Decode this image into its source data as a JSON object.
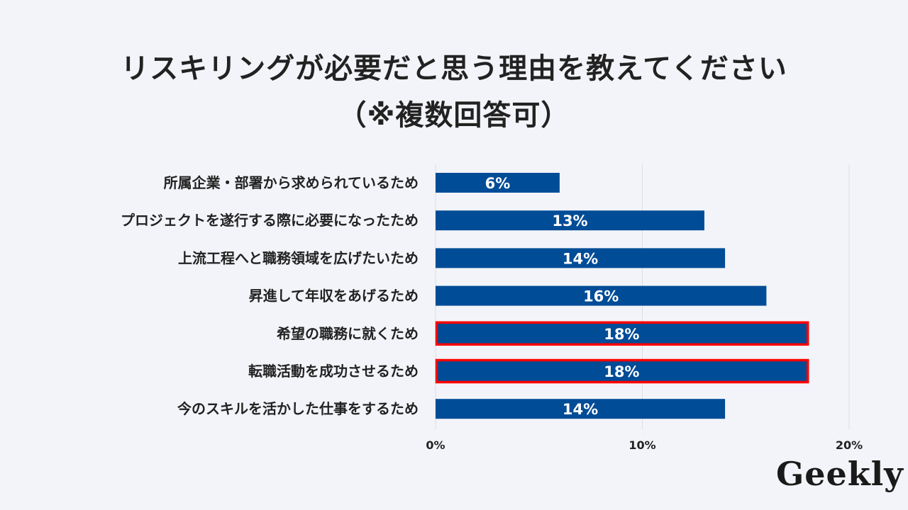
{
  "title_line1": "リスキリングが必要だと思う理由を教えてください",
  "title_line2": "（※複数回答可）",
  "logo_text": "Geekly",
  "chart_data": {
    "type": "bar",
    "orientation": "horizontal",
    "title": "リスキリングが必要だと思う理由を教えてください（※複数回答可）",
    "categories": [
      "所属企業・部署から求められているため",
      "プロジェクトを遂行する際に必要になったため",
      "上流工程へと職務領域を広げたいため",
      "昇進して年収をあげるため",
      "希望の職務に就くため",
      "転職活動を成功させるため",
      "今のスキルを活かした仕事をするため"
    ],
    "values": [
      6,
      13,
      14,
      16,
      18,
      18,
      14
    ],
    "data_labels": [
      "6%",
      "13%",
      "14%",
      "16%",
      "18%",
      "18%",
      "14%"
    ],
    "highlighted": [
      false,
      false,
      false,
      false,
      true,
      true,
      false
    ],
    "xlim": [
      0,
      20
    ],
    "x_ticks": [
      0,
      10,
      20
    ],
    "x_tick_labels": [
      "0%",
      "10%",
      "20%"
    ],
    "grid": true,
    "colors": {
      "bar": "#004c97",
      "highlight_border": "#ff0000",
      "grid": "#dcdde2"
    }
  }
}
